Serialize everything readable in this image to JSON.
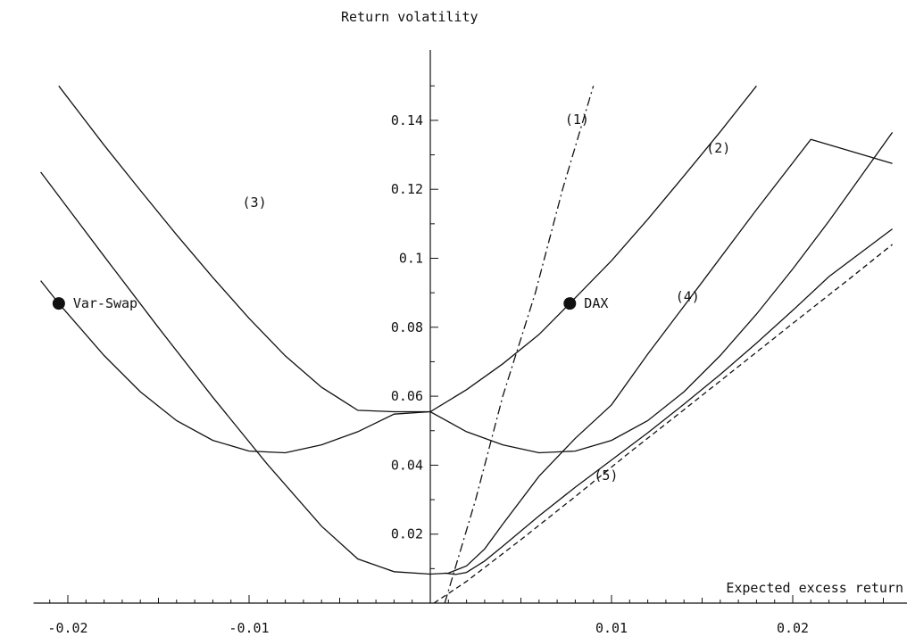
{
  "chart_data": {
    "type": "line",
    "title": "",
    "xlabel": "Expected excess return",
    "ylabel": "Return volatility",
    "xlim": [
      -0.0215,
      0.0255
    ],
    "ylim": [
      0,
      0.15
    ],
    "x_ticks": [
      {
        "value": -0.02,
        "label": "-0.02"
      },
      {
        "value": -0.01,
        "label": "-0.01"
      },
      {
        "value": 0.01,
        "label": "0.01"
      },
      {
        "value": 0.02,
        "label": "0.02"
      }
    ],
    "y_ticks": [
      {
        "value": 0.02,
        "label": "0.02"
      },
      {
        "value": 0.04,
        "label": "0.04"
      },
      {
        "value": 0.06,
        "label": "0.06"
      },
      {
        "value": 0.08,
        "label": "0.08"
      },
      {
        "value": 0.1,
        "label": "0.1"
      },
      {
        "value": 0.12,
        "label": "0.12"
      },
      {
        "value": 0.14,
        "label": "0.14"
      }
    ],
    "series": [
      {
        "style": "dashdot",
        "points": [
          [
            0.0008,
            0.0
          ],
          [
            0.0025,
            0.03
          ],
          [
            0.004,
            0.06
          ],
          [
            0.0058,
            0.09
          ],
          [
            0.0073,
            0.12
          ],
          [
            0.009,
            0.15
          ]
        ]
      },
      {
        "style": "solid",
        "points": [
          [
            -0.0215,
            0.0935
          ],
          [
            -0.0205,
            0.0869
          ],
          [
            -0.018,
            0.0718
          ],
          [
            -0.016,
            0.0613
          ],
          [
            -0.014,
            0.0529
          ],
          [
            -0.012,
            0.0472
          ],
          [
            -0.01,
            0.0441
          ],
          [
            -0.008,
            0.0436
          ],
          [
            -0.006,
            0.0459
          ],
          [
            -0.004,
            0.0497
          ],
          [
            -0.002,
            0.0548
          ],
          [
            0.0,
            0.0555
          ],
          [
            0.002,
            0.0619
          ],
          [
            0.004,
            0.0694
          ],
          [
            0.006,
            0.0779
          ],
          [
            0.0077,
            0.0869
          ],
          [
            0.01,
            0.0993
          ],
          [
            0.012,
            0.1113
          ],
          [
            0.014,
            0.1239
          ],
          [
            0.016,
            0.1367
          ],
          [
            0.018,
            0.15
          ]
        ]
      },
      {
        "style": "solid",
        "points": [
          [
            -0.0205,
            0.15
          ],
          [
            -0.018,
            0.1328
          ],
          [
            -0.016,
            0.1197
          ],
          [
            -0.014,
            0.1068
          ],
          [
            -0.012,
            0.0944
          ],
          [
            -0.01,
            0.0826
          ],
          [
            -0.008,
            0.0717
          ],
          [
            -0.006,
            0.0626
          ],
          [
            -0.004,
            0.0559
          ],
          [
            -0.002,
            0.0555
          ],
          [
            0.0,
            0.0555
          ],
          [
            0.002,
            0.0497
          ],
          [
            0.004,
            0.0459
          ],
          [
            0.006,
            0.0436
          ],
          [
            0.008,
            0.0441
          ],
          [
            0.01,
            0.0472
          ],
          [
            0.012,
            0.0529
          ],
          [
            0.014,
            0.0613
          ],
          [
            0.016,
            0.0718
          ],
          [
            0.018,
            0.0838
          ],
          [
            0.02,
            0.0969
          ],
          [
            0.022,
            0.1108
          ],
          [
            0.0255,
            0.1365
          ]
        ]
      },
      {
        "style": "solid",
        "points": [
          [
            -0.0215,
            0.125
          ],
          [
            -0.018,
            0.1006
          ],
          [
            -0.015,
            0.0799
          ],
          [
            -0.012,
            0.0597
          ],
          [
            -0.009,
            0.0403
          ],
          [
            -0.006,
            0.0223
          ],
          [
            -0.004,
            0.0128
          ],
          [
            -0.002,
            0.0091
          ],
          [
            0.0,
            0.0084
          ],
          [
            0.001,
            0.0087
          ],
          [
            0.002,
            0.0108
          ],
          [
            0.003,
            0.0157
          ],
          [
            0.004,
            0.0229
          ],
          [
            0.006,
            0.0368
          ],
          [
            0.008,
            0.0478
          ],
          [
            0.01,
            0.0575
          ],
          [
            0.012,
            0.0722
          ],
          [
            0.015,
            0.0931
          ],
          [
            0.018,
            0.1141
          ],
          [
            0.021,
            0.1345
          ],
          [
            0.0255,
            0.1275
          ]
        ]
      },
      {
        "style": "solid",
        "points": [
          [
            0.0008,
            0.0087
          ],
          [
            0.0014,
            0.0083
          ],
          [
            0.002,
            0.0089
          ],
          [
            0.003,
            0.0122
          ],
          [
            0.004,
            0.0165
          ],
          [
            0.006,
            0.0253
          ],
          [
            0.008,
            0.0336
          ],
          [
            0.01,
            0.0415
          ],
          [
            0.012,
            0.0494
          ],
          [
            0.014,
            0.0577
          ],
          [
            0.016,
            0.0663
          ],
          [
            0.018,
            0.0754
          ],
          [
            0.02,
            0.0849
          ],
          [
            0.022,
            0.0947
          ],
          [
            0.0255,
            0.1085
          ]
        ]
      },
      {
        "style": "dashed",
        "points": [
          [
            0.0002,
            0.0
          ],
          [
            0.002,
            0.0063
          ],
          [
            0.005,
            0.0184
          ],
          [
            0.008,
            0.0309
          ],
          [
            0.011,
            0.0437
          ],
          [
            0.014,
            0.0561
          ],
          [
            0.017,
            0.0686
          ],
          [
            0.02,
            0.0811
          ],
          [
            0.023,
            0.0935
          ],
          [
            0.0255,
            0.104
          ]
        ]
      }
    ],
    "curve_labels": [
      {
        "text": "(1)",
        "x": 0.0081,
        "y": 0.139
      },
      {
        "text": "(2)",
        "x": 0.0159,
        "y": 0.1306
      },
      {
        "text": "(3)",
        "x": -0.0097,
        "y": 0.1149
      },
      {
        "text": "(4)",
        "x": 0.0142,
        "y": 0.0876
      },
      {
        "text": "(5)",
        "x": 0.0097,
        "y": 0.0357
      }
    ],
    "points": [
      {
        "label": "Var-Swap",
        "x": -0.0205,
        "y": 0.0869,
        "label_side": "right"
      },
      {
        "label": "DAX",
        "x": 0.0077,
        "y": 0.0869,
        "label_side": "right"
      }
    ]
  }
}
